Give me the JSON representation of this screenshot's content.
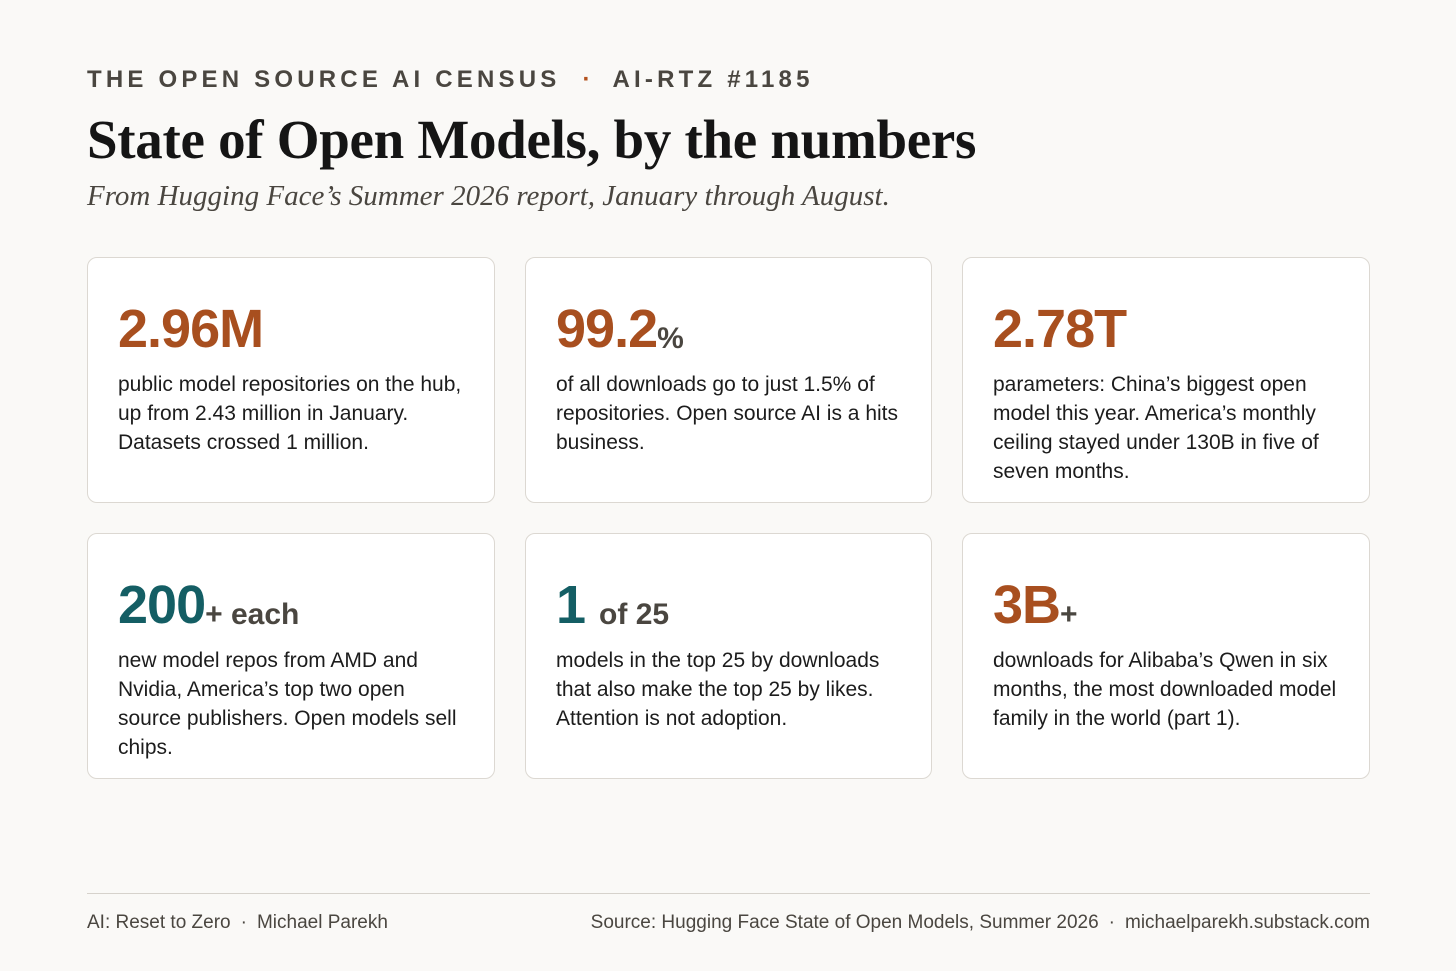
{
  "header": {
    "kicker": "THE OPEN SOURCE AI CENSUS",
    "kicker_separator": "·",
    "issue": "AI-RTZ #1185",
    "title": "State of Open Models, by the numbers",
    "subtitle": "From Hugging Face’s Summer 2026 report, January through August."
  },
  "cards": [
    {
      "value": "2.96M",
      "suffix": "",
      "accent": "#a84f1f",
      "description": "public model repositories on the hub, up from 2.43 million in January. Datasets crossed 1 million."
    },
    {
      "value": "99.2",
      "suffix": "%",
      "accent": "#a84f1f",
      "description": "of all downloads go to just 1.5% of repositories. Open source AI is a hits business."
    },
    {
      "value": "2.78T",
      "suffix": "",
      "accent": "#a84f1f",
      "description": "parameters: China’s biggest open model this year. America’s monthly ceiling stayed under 130B in five of seven months."
    },
    {
      "value": "200",
      "suffix": "+ each",
      "accent": "#145e64",
      "description": "new model repos from AMD and Nvidia, America’s top two open source publishers. Open models sell chips."
    },
    {
      "value": "1",
      "suffix": "of 25",
      "accent": "#145e64",
      "description": "models in the top 25 by downloads that also make the top 25 by likes. Attention is not adoption."
    },
    {
      "value": "3B",
      "suffix": "+",
      "accent": "#a84f1f",
      "description": "downloads for Alibaba’s Qwen in six months, the most downloaded model family in the world (part 1)."
    }
  ],
  "footer": {
    "publication": "AI: Reset to Zero",
    "separator": "·",
    "author": "Michael Parekh",
    "source": "Source: Hugging Face State of Open Models, Summer 2026",
    "site": "michaelparekh.substack.com"
  }
}
